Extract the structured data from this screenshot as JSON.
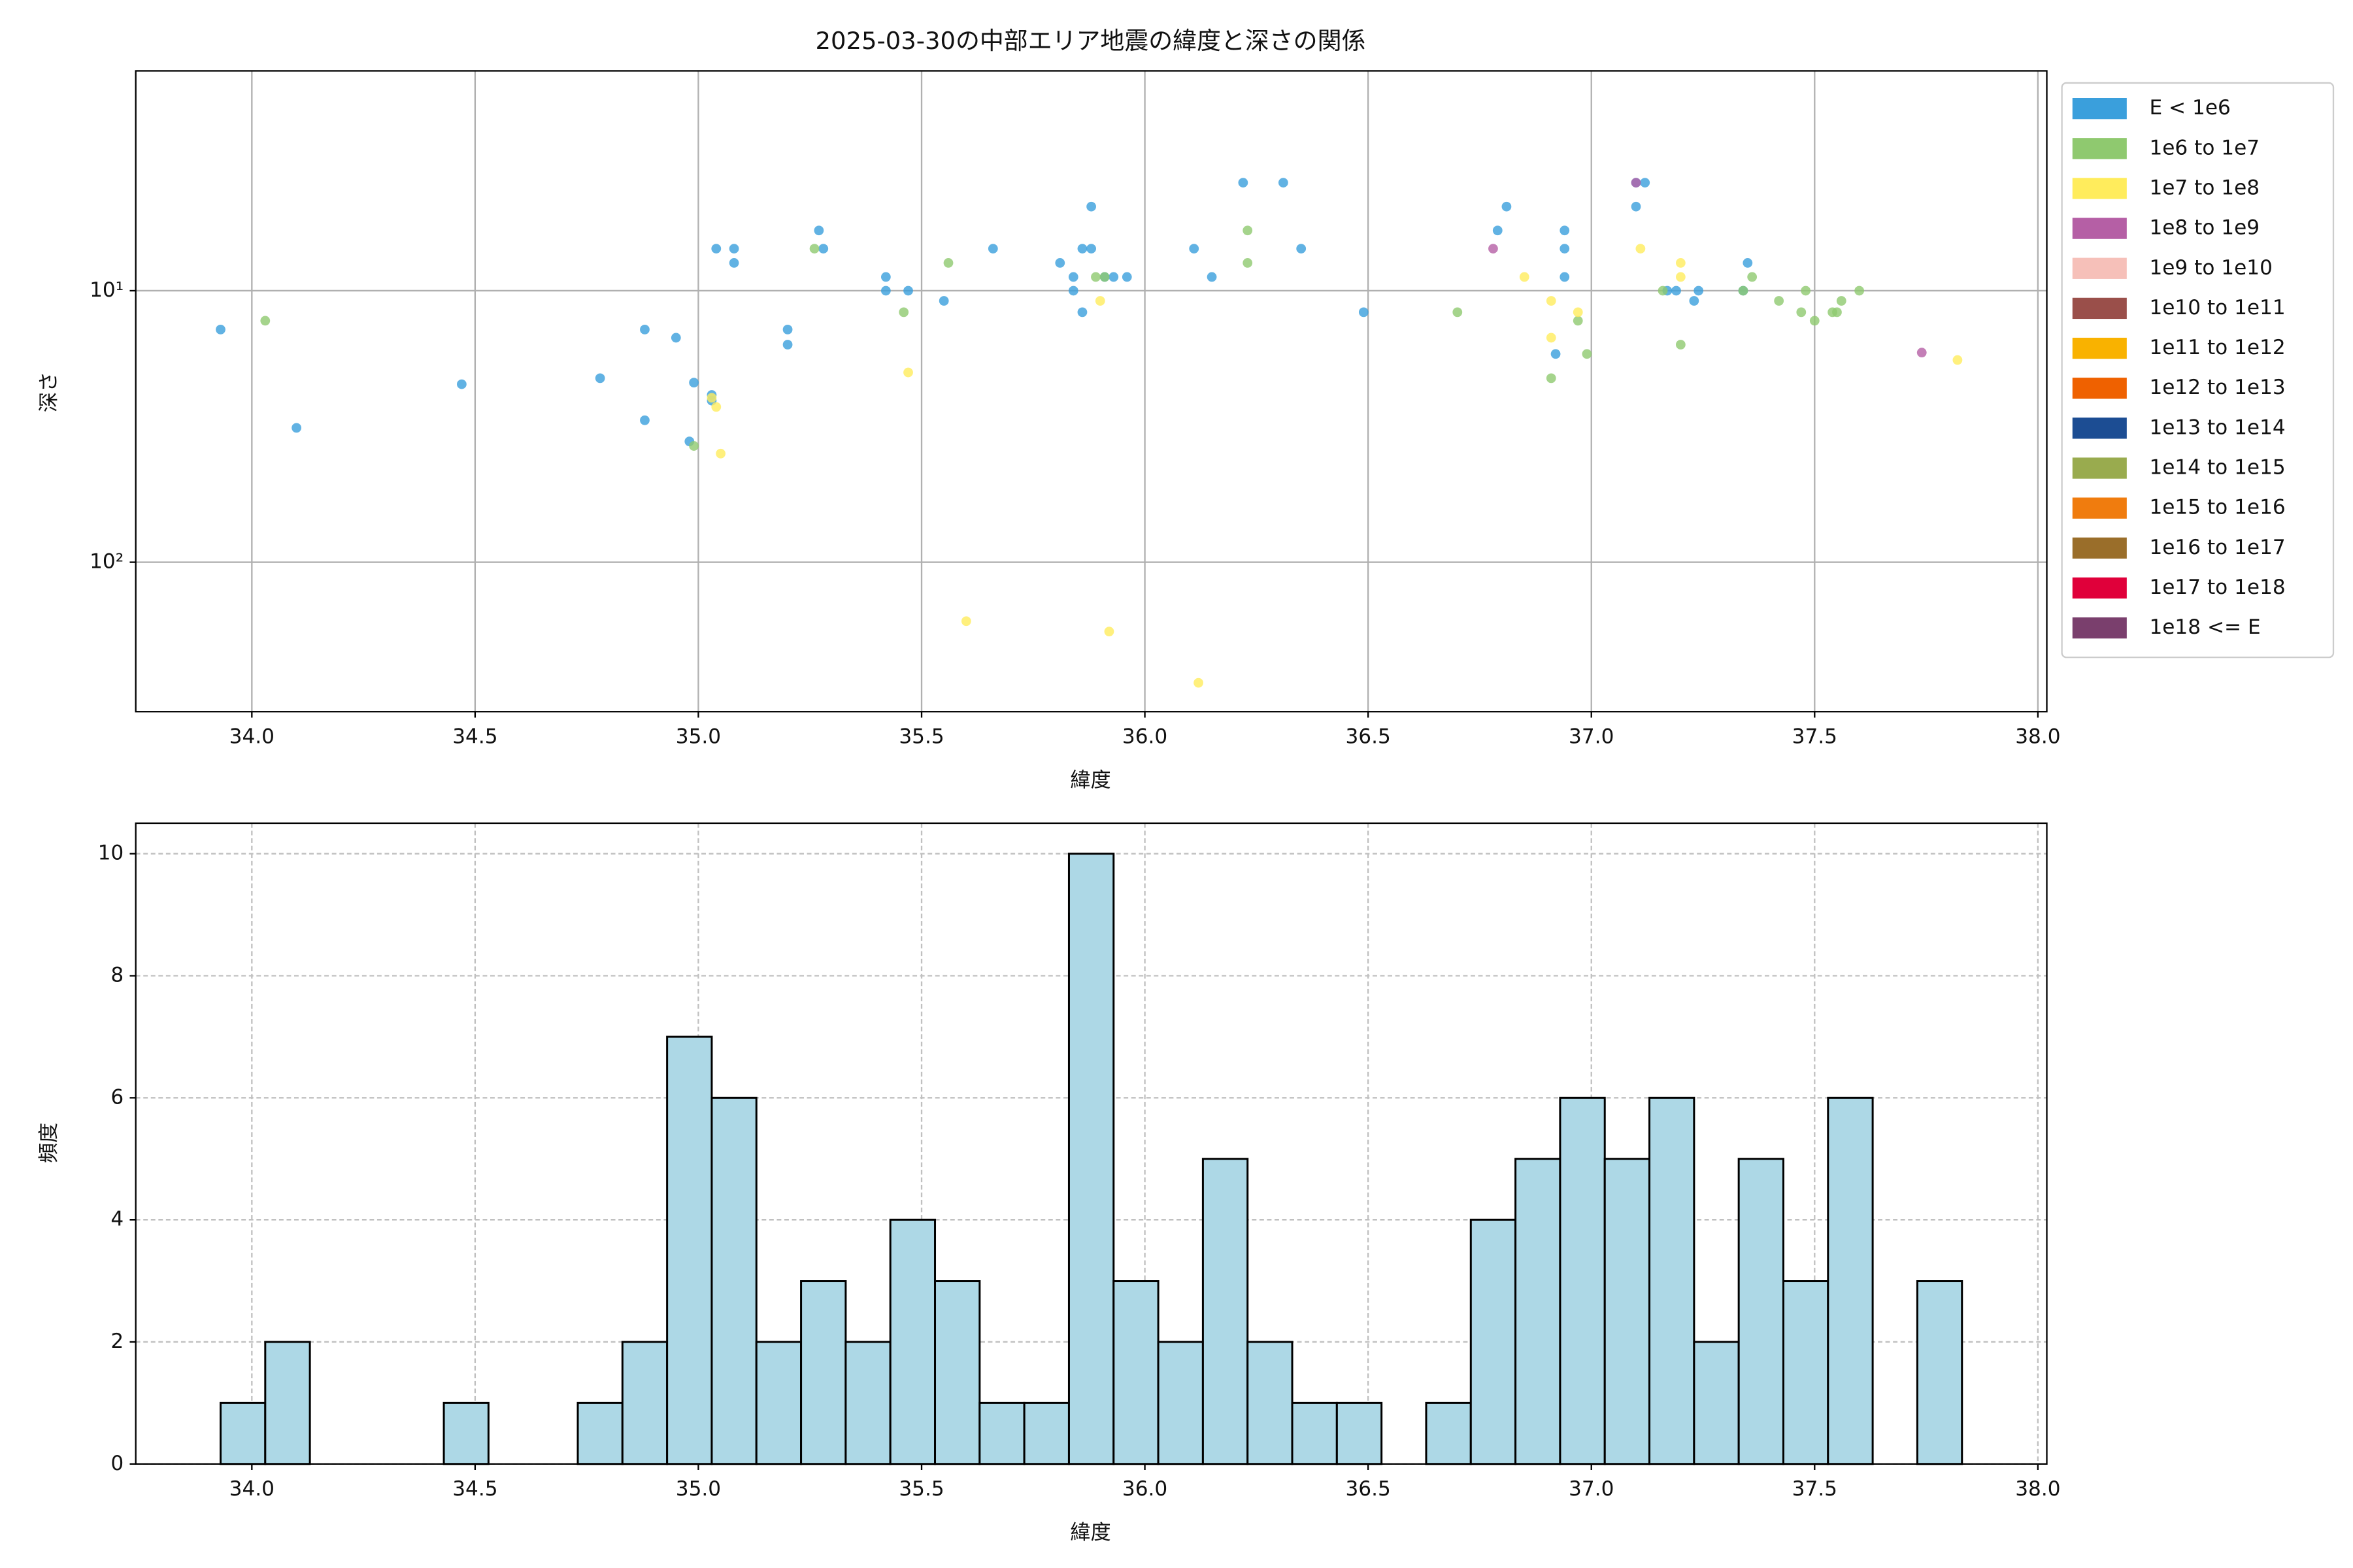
{
  "chart_data": [
    {
      "type": "scatter",
      "title": "2025-03-30の中部エリア地震の緯度と深さの関係",
      "xlabel": "緯度",
      "ylabel": "深さ",
      "xlim": [
        33.74,
        38.02
      ],
      "ylim": [
        355,
        1.55
      ],
      "yscale": "log",
      "grid": true,
      "legend": "outside right",
      "xticks": [
        {
          "value": 34.0,
          "label": "34.0"
        },
        {
          "value": 34.5,
          "label": "34.5"
        },
        {
          "value": 35.0,
          "label": "35.0"
        },
        {
          "value": 35.5,
          "label": "35.5"
        },
        {
          "value": 36.0,
          "label": "36.0"
        },
        {
          "value": 36.5,
          "label": "36.5"
        },
        {
          "value": 37.0,
          "label": "37.0"
        },
        {
          "value": 37.5,
          "label": "37.5"
        },
        {
          "value": 38.0,
          "label": "38.0"
        }
      ],
      "yticks": [
        {
          "value": 10,
          "label": "10¹"
        },
        {
          "value": 100,
          "label": "10²"
        }
      ],
      "series": [
        {
          "name": "E < 1e6",
          "color": "#3a9fdc",
          "x": [
            33.93,
            34.1,
            34.47,
            34.78,
            34.88,
            34.88,
            34.95,
            34.98,
            34.99,
            35.03,
            35.03,
            35.04,
            35.08,
            35.08,
            35.2,
            35.2,
            35.27,
            35.28,
            35.42,
            35.42,
            35.47,
            35.55,
            35.66,
            35.81,
            35.84,
            35.84,
            35.86,
            35.86,
            35.88,
            35.88,
            35.91,
            35.93,
            35.96,
            36.11,
            36.15,
            36.22,
            36.31,
            36.35,
            36.49,
            36.79,
            36.81,
            36.94,
            36.94,
            36.94,
            36.92,
            37.1,
            37.1,
            37.12,
            37.17,
            37.19,
            37.23,
            37.24,
            37.35,
            37.34
          ],
          "values": [
            13.9,
            32.0,
            22.1,
            21.0,
            13.9,
            30.0,
            14.9,
            35.9,
            21.8,
            24.2,
            25.4,
            7.0,
            7.0,
            7.9,
            13.9,
            15.8,
            6.0,
            7.0,
            8.9,
            10,
            10,
            10.9,
            7.0,
            7.9,
            8.9,
            10,
            7.0,
            12.0,
            7.0,
            4.9,
            8.9,
            8.9,
            8.9,
            7.0,
            8.9,
            4.0,
            4.0,
            7.0,
            12.0,
            6.0,
            4.9,
            6.0,
            7.0,
            8.9,
            17.1,
            4.9,
            4.0,
            4.0,
            10,
            10,
            10.9,
            10,
            7.9,
            10
          ]
        },
        {
          "name": "1e6 to 1e7",
          "color": "#8fc96f",
          "x": [
            34.03,
            35.26,
            35.46,
            35.56,
            35.89,
            35.91,
            36.23,
            36.23,
            36.7,
            36.91,
            36.97,
            36.99,
            37.16,
            37.2,
            37.34,
            37.36,
            37.42,
            37.47,
            37.48,
            37.5,
            37.54,
            37.55,
            37.56,
            37.6,
            34.99
          ],
          "values": [
            12.9,
            7.0,
            12.0,
            7.9,
            8.9,
            8.9,
            6.0,
            7.9,
            12.0,
            21.0,
            12.9,
            17.1,
            10,
            15.8,
            10,
            8.9,
            10.9,
            12.0,
            10,
            12.9,
            12.0,
            12.0,
            10.9,
            10,
            37.3
          ]
        },
        {
          "name": "1e7 to 1e8",
          "color": "#ffec5c",
          "x": [
            35.04,
            35.05,
            35.47,
            35.6,
            35.9,
            35.92,
            36.12,
            36.85,
            36.91,
            36.91,
            36.97,
            37.11,
            37.2,
            37.2,
            37.82,
            35.03
          ],
          "values": [
            26.8,
            39.8,
            20.0,
            164.8,
            10.9,
            180,
            278,
            8.9,
            10.9,
            14.9,
            12.0,
            7.0,
            7.9,
            8.9,
            18.0,
            24.8
          ]
        },
        {
          "name": "1e8 to 1e9",
          "color": "#b55fa5",
          "x": [
            36.78,
            37.1,
            37.74
          ],
          "values": [
            7.0,
            4.0,
            16.9
          ]
        },
        {
          "name": "1e9 to 1e10",
          "color": "#f6c0b9",
          "x": [],
          "values": []
        },
        {
          "name": "1e10 to 1e11",
          "color": "#9a4f4a",
          "x": [],
          "values": []
        },
        {
          "name": "1e11 to 1e12",
          "color": "#f9b200",
          "x": [],
          "values": []
        },
        {
          "name": "1e12 to 1e13",
          "color": "#ef6100",
          "x": [],
          "values": []
        },
        {
          "name": "1e13 to 1e14",
          "color": "#1c4d93",
          "x": [],
          "values": []
        },
        {
          "name": "1e14 to 1e15",
          "color": "#99ab4e",
          "x": [],
          "values": []
        },
        {
          "name": "1e15 to 1e16",
          "color": "#f07c0e",
          "x": [],
          "values": []
        },
        {
          "name": "1e16 to 1e17",
          "color": "#9a6e2a",
          "x": [],
          "values": []
        },
        {
          "name": "1e17 to 1e18",
          "color": "#e0003a",
          "x": [],
          "values": []
        },
        {
          "name": "1e18 <= E",
          "color": "#7a3f6d",
          "x": [],
          "values": []
        }
      ]
    },
    {
      "type": "histogram",
      "xlabel": "緯度",
      "ylabel": "頻度",
      "color": "#add8e6",
      "edgecolor": "#000000",
      "xlim": [
        33.74,
        38.02
      ],
      "ylim": [
        0,
        10.5
      ],
      "grid": true,
      "grid_style": "dashed",
      "xticks": [
        {
          "value": 34.0,
          "label": "34.0"
        },
        {
          "value": 34.5,
          "label": "34.5"
        },
        {
          "value": 35.0,
          "label": "35.0"
        },
        {
          "value": 35.5,
          "label": "35.5"
        },
        {
          "value": 36.0,
          "label": "36.0"
        },
        {
          "value": 36.5,
          "label": "36.5"
        },
        {
          "value": 37.0,
          "label": "37.0"
        },
        {
          "value": 37.5,
          "label": "37.5"
        },
        {
          "value": 38.0,
          "label": "38.0"
        }
      ],
      "yticks": [
        0,
        2,
        4,
        6,
        8,
        10
      ],
      "bins": [
        33.93,
        34.03,
        34.13,
        34.23,
        34.33,
        34.43,
        34.53,
        34.63,
        34.73,
        34.83,
        34.93,
        35.03,
        35.13,
        35.23,
        35.33,
        35.43,
        35.53,
        35.63,
        35.73,
        35.83,
        35.93,
        36.03,
        36.13,
        36.23,
        36.33,
        36.43,
        36.53,
        36.63,
        36.73,
        36.83,
        36.93,
        37.03,
        37.13,
        37.23,
        37.33,
        37.43,
        37.53,
        37.63,
        37.73,
        37.83
      ],
      "counts": [
        1,
        2,
        0,
        0,
        0,
        1,
        0,
        0,
        1,
        2,
        7,
        6,
        2,
        3,
        2,
        4,
        3,
        1,
        1,
        10,
        3,
        2,
        5,
        2,
        1,
        1,
        0,
        1,
        4,
        5,
        6,
        5,
        6,
        2,
        5,
        3,
        6,
        0,
        3
      ]
    }
  ]
}
